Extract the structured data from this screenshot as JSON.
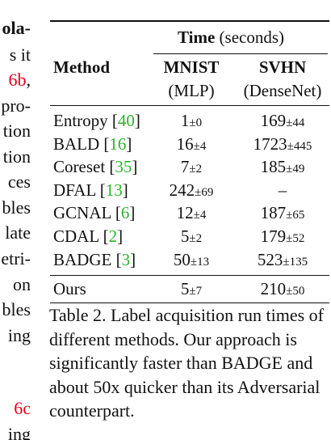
{
  "left_column_fragments": [
    {
      "text": "ola-",
      "bold": true
    },
    {
      "text": "s it"
    },
    {
      "text": "6b",
      "suffix": ",",
      "ref": true
    },
    {
      "text": "pro-"
    },
    {
      "text": "tion"
    },
    {
      "text": "tion"
    },
    {
      "text": "ces"
    },
    {
      "text": "bles"
    },
    {
      "text": "late"
    },
    {
      "text": "etri-"
    },
    {
      "text": "on"
    },
    {
      "text": "bles"
    },
    {
      "text": "ing"
    },
    {
      "text": ""
    },
    {
      "text": "6c",
      "ref": true
    },
    {
      "text": "ing"
    }
  ],
  "table": {
    "group_header": {
      "bold": "Time",
      "rest": "(seconds)"
    },
    "method_header": "Method",
    "columns": [
      {
        "name": "MNIST",
        "sub": "(MLP)"
      },
      {
        "name": "SVHN",
        "sub": "(DenseNet)"
      }
    ],
    "rows": [
      {
        "method": "Entropy",
        "cite": "40",
        "mnist": "1",
        "mnist_pm": "±0",
        "svhn": "169",
        "svhn_pm": "±44"
      },
      {
        "method": "BALD",
        "cite": "16",
        "mnist": "16",
        "mnist_pm": "±4",
        "svhn": "1723",
        "svhn_pm": "±445"
      },
      {
        "method": "Coreset",
        "cite": "35",
        "mnist": "7",
        "mnist_pm": "±2",
        "svhn": "185",
        "svhn_pm": "±49"
      },
      {
        "method": "DFAL",
        "cite": "13",
        "mnist": "242",
        "mnist_pm": "±69",
        "svhn": "–",
        "svhn_pm": ""
      },
      {
        "method": "GCNAL",
        "cite": "6",
        "mnist": "12",
        "mnist_pm": "±4",
        "svhn": "187",
        "svhn_pm": "±65"
      },
      {
        "method": "CDAL",
        "cite": "2",
        "mnist": "5",
        "mnist_pm": "±2",
        "svhn": "179",
        "svhn_pm": "±52"
      },
      {
        "method": "BADGE",
        "cite": "3",
        "mnist": "50",
        "mnist_pm": "±13",
        "svhn": "523",
        "svhn_pm": "±135"
      }
    ],
    "ours": {
      "method": "Ours",
      "mnist": "5",
      "mnist_pm": "±7",
      "svhn": "210",
      "svhn_pm": "±50"
    }
  },
  "caption": "Table 2. Label acquisition run times of different methods. Our approach is significantly faster than BADGE and about 50x quicker than its Adversarial counterpart.",
  "colors": {
    "reference": "#e8001c",
    "citation": "#2ab52a",
    "text": "#111111"
  }
}
